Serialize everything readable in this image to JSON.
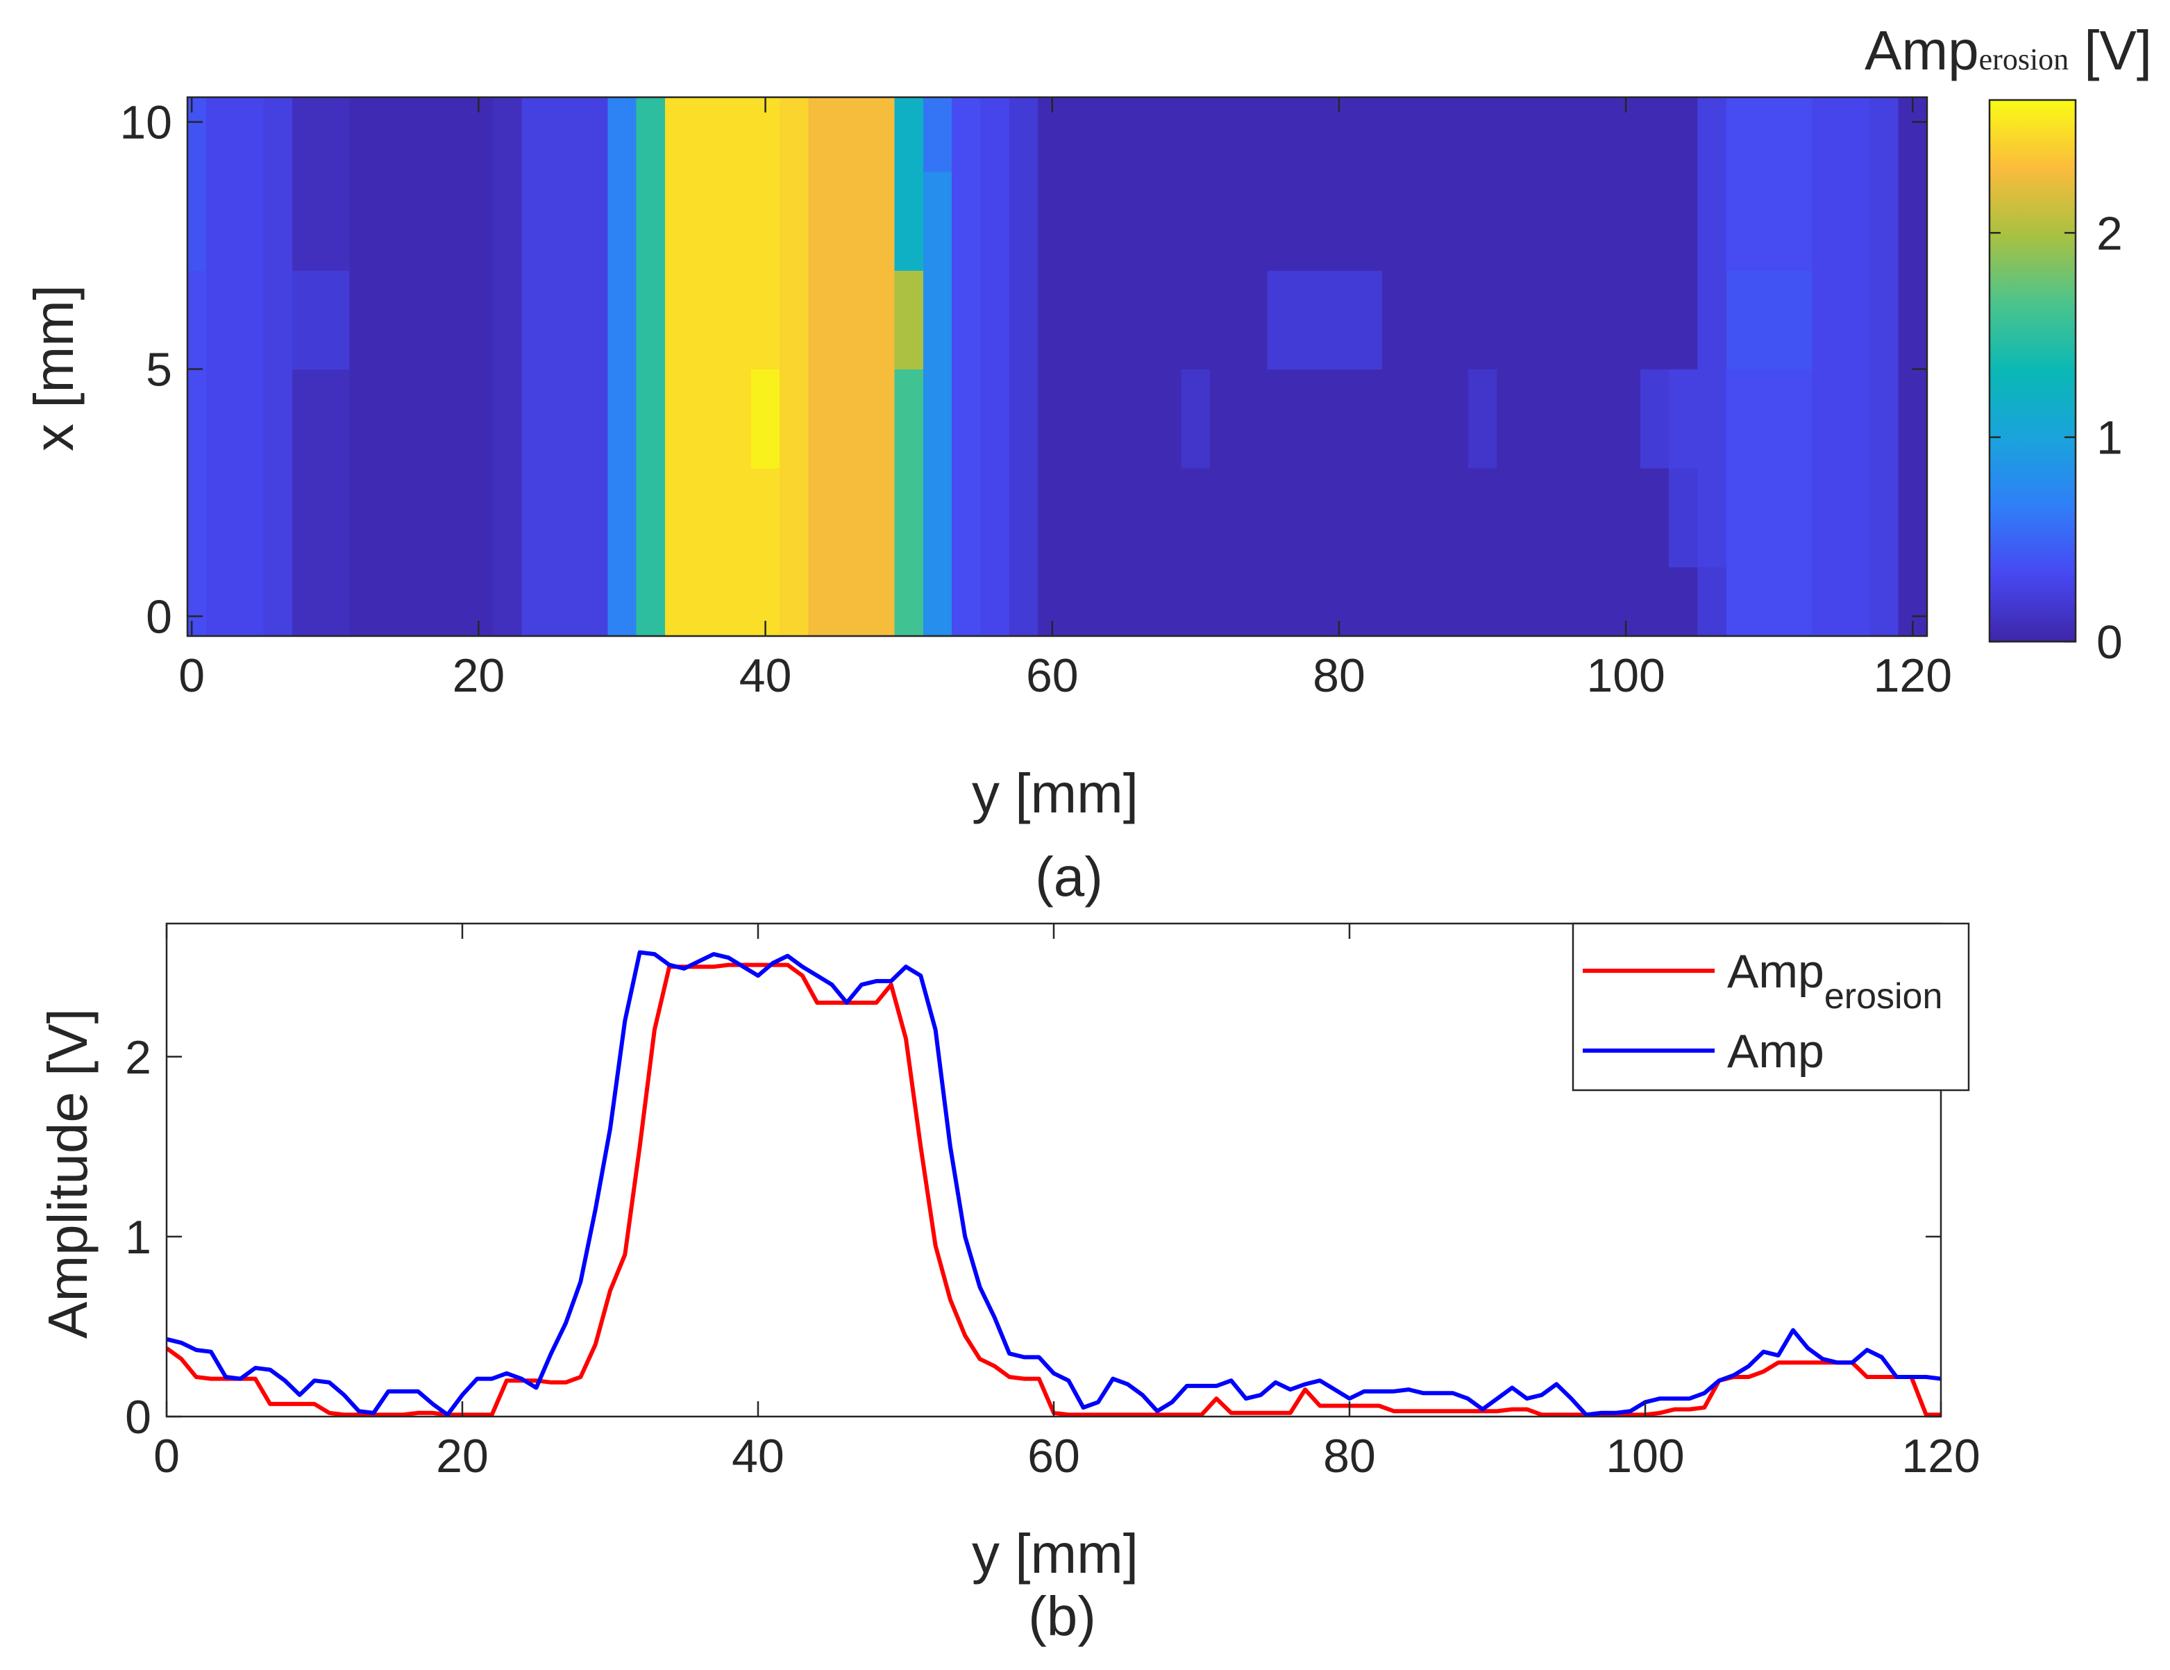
{
  "chart_data": [
    {
      "type": "heatmap",
      "xlabel": "y [mm]",
      "ylabel": "x [mm]",
      "caption": "(a)",
      "x": [
        0,
        2,
        4,
        6,
        8,
        10,
        12,
        14,
        16,
        18,
        20,
        22,
        24,
        26,
        28,
        30,
        32,
        34,
        36,
        38,
        40,
        42,
        44,
        46,
        48,
        50,
        52,
        54,
        56,
        58,
        60,
        62,
        64,
        66,
        68,
        70,
        72,
        74,
        76,
        78,
        80,
        82,
        84,
        86,
        88,
        90,
        92,
        94,
        96,
        98,
        100,
        102,
        104,
        106,
        108,
        110,
        112,
        114,
        116,
        118,
        120
      ],
      "y": [
        0,
        2,
        4,
        6,
        8,
        10
      ],
      "z": [
        [
          0.35,
          0.3,
          0.3,
          0.25,
          0.1,
          0.1,
          0.05,
          0.05,
          0.05,
          0.05,
          0.05,
          0.1,
          0.25,
          0.25,
          0.25,
          0.7,
          1.5,
          2.5,
          2.5,
          2.5,
          2.5,
          2.45,
          2.3,
          2.3,
          2.3,
          1.6,
          0.8,
          0.35,
          0.3,
          0.2,
          0.05,
          0.05,
          0.05,
          0.05,
          0.05,
          0.05,
          0.05,
          0.05,
          0.05,
          0.05,
          0.05,
          0.05,
          0.05,
          0.05,
          0.05,
          0.05,
          0.05,
          0.05,
          0.05,
          0.05,
          0.05,
          0.05,
          0.05,
          0.2,
          0.35,
          0.35,
          0.35,
          0.3,
          0.3,
          0.25,
          0.05
        ],
        [
          0.35,
          0.3,
          0.3,
          0.25,
          0.1,
          0.1,
          0.05,
          0.05,
          0.05,
          0.05,
          0.05,
          0.1,
          0.25,
          0.25,
          0.25,
          0.7,
          1.5,
          2.5,
          2.5,
          2.5,
          2.5,
          2.45,
          2.3,
          2.3,
          2.3,
          1.6,
          0.8,
          0.35,
          0.3,
          0.2,
          0.05,
          0.05,
          0.05,
          0.05,
          0.05,
          0.05,
          0.05,
          0.05,
          0.05,
          0.05,
          0.05,
          0.05,
          0.05,
          0.05,
          0.05,
          0.05,
          0.05,
          0.05,
          0.05,
          0.05,
          0.05,
          0.05,
          0.2,
          0.25,
          0.35,
          0.35,
          0.35,
          0.3,
          0.3,
          0.25,
          0.05
        ],
        [
          0.35,
          0.3,
          0.3,
          0.25,
          0.1,
          0.1,
          0.05,
          0.05,
          0.05,
          0.05,
          0.05,
          0.1,
          0.25,
          0.25,
          0.25,
          0.7,
          1.5,
          2.5,
          2.5,
          2.5,
          2.6,
          2.45,
          2.3,
          2.3,
          2.3,
          1.6,
          0.8,
          0.35,
          0.3,
          0.2,
          0.05,
          0.05,
          0.05,
          0.05,
          0.05,
          0.15,
          0.05,
          0.05,
          0.05,
          0.05,
          0.05,
          0.05,
          0.05,
          0.05,
          0.05,
          0.15,
          0.05,
          0.05,
          0.05,
          0.05,
          0.05,
          0.2,
          0.25,
          0.25,
          0.35,
          0.35,
          0.35,
          0.3,
          0.3,
          0.25,
          0.05
        ],
        [
          0.35,
          0.3,
          0.3,
          0.25,
          0.2,
          0.2,
          0.05,
          0.05,
          0.05,
          0.05,
          0.05,
          0.1,
          0.25,
          0.25,
          0.25,
          0.7,
          1.5,
          2.5,
          2.5,
          2.5,
          2.5,
          2.45,
          2.3,
          2.3,
          2.3,
          2.0,
          0.8,
          0.35,
          0.3,
          0.2,
          0.05,
          0.05,
          0.05,
          0.05,
          0.05,
          0.05,
          0.05,
          0.05,
          0.2,
          0.2,
          0.2,
          0.2,
          0.05,
          0.05,
          0.05,
          0.05,
          0.05,
          0.05,
          0.05,
          0.05,
          0.05,
          0.05,
          0.05,
          0.25,
          0.4,
          0.4,
          0.4,
          0.3,
          0.3,
          0.25,
          0.05
        ],
        [
          0.4,
          0.3,
          0.3,
          0.25,
          0.1,
          0.1,
          0.05,
          0.05,
          0.05,
          0.05,
          0.05,
          0.1,
          0.25,
          0.25,
          0.25,
          0.7,
          1.5,
          2.5,
          2.5,
          2.5,
          2.5,
          2.45,
          2.3,
          2.3,
          2.3,
          1.2,
          0.8,
          0.35,
          0.3,
          0.2,
          0.05,
          0.05,
          0.05,
          0.05,
          0.05,
          0.05,
          0.05,
          0.05,
          0.05,
          0.05,
          0.05,
          0.05,
          0.05,
          0.05,
          0.05,
          0.05,
          0.05,
          0.05,
          0.05,
          0.05,
          0.05,
          0.05,
          0.05,
          0.25,
          0.35,
          0.35,
          0.35,
          0.3,
          0.3,
          0.25,
          0.05
        ],
        [
          0.4,
          0.3,
          0.3,
          0.25,
          0.1,
          0.1,
          0.05,
          0.05,
          0.05,
          0.05,
          0.05,
          0.1,
          0.25,
          0.25,
          0.25,
          0.7,
          1.5,
          2.5,
          2.5,
          2.5,
          2.5,
          2.45,
          2.3,
          2.3,
          2.3,
          1.2,
          0.6,
          0.35,
          0.3,
          0.2,
          0.05,
          0.05,
          0.05,
          0.05,
          0.05,
          0.05,
          0.05,
          0.05,
          0.05,
          0.05,
          0.05,
          0.05,
          0.05,
          0.05,
          0.05,
          0.05,
          0.05,
          0.05,
          0.05,
          0.05,
          0.05,
          0.05,
          0.05,
          0.25,
          0.35,
          0.35,
          0.35,
          0.3,
          0.3,
          0.25,
          0.05
        ]
      ],
      "xlim": [
        -0.3,
        121
      ],
      "ylim": [
        -0.4,
        10.5
      ],
      "xticks": [
        0,
        20,
        40,
        60,
        80,
        100,
        120
      ],
      "yticks": [
        0,
        5,
        10
      ],
      "colorbar": {
        "label": "Amp",
        "label_subscript": "erosion",
        "unit": "[V]",
        "lim": [
          0,
          2.65
        ],
        "ticks": [
          0,
          1,
          2
        ]
      }
    },
    {
      "type": "line",
      "xlabel": "y [mm]",
      "ylabel": "Amplitude [V]",
      "caption": "(b)",
      "x": [
        0,
        1,
        2,
        3,
        4,
        5,
        6,
        7,
        8,
        9,
        10,
        11,
        12,
        13,
        14,
        15,
        16,
        17,
        18,
        19,
        20,
        21,
        22,
        23,
        24,
        25,
        26,
        27,
        28,
        29,
        30,
        31,
        32,
        33,
        34,
        35,
        36,
        37,
        38,
        39,
        40,
        41,
        42,
        43,
        44,
        45,
        46,
        47,
        48,
        49,
        50,
        51,
        52,
        53,
        54,
        55,
        56,
        57,
        58,
        59,
        60,
        61,
        62,
        63,
        64,
        65,
        66,
        67,
        68,
        69,
        70,
        71,
        72,
        73,
        74,
        75,
        76,
        77,
        78,
        79,
        80,
        81,
        82,
        83,
        84,
        85,
        86,
        87,
        88,
        89,
        90,
        91,
        92,
        93,
        94,
        95,
        96,
        97,
        98,
        99,
        100,
        101,
        102,
        103,
        104,
        105,
        106,
        107,
        108,
        109,
        110,
        111,
        112,
        113,
        114,
        115,
        116,
        117,
        118,
        119,
        120
      ],
      "series": [
        {
          "name": "Amp",
          "name_subscript": "erosion",
          "color": "#ff0000",
          "values": [
            0.38,
            0.32,
            0.22,
            0.21,
            0.21,
            0.21,
            0.21,
            0.07,
            0.07,
            0.07,
            0.07,
            0.02,
            0.01,
            0.01,
            0.01,
            0.01,
            0.01,
            0.02,
            0.02,
            0.01,
            0.01,
            0.01,
            0.01,
            0.2,
            0.2,
            0.2,
            0.19,
            0.19,
            0.22,
            0.4,
            0.7,
            0.9,
            1.5,
            2.15,
            2.5,
            2.5,
            2.5,
            2.5,
            2.51,
            2.51,
            2.51,
            2.51,
            2.51,
            2.45,
            2.3,
            2.3,
            2.3,
            2.3,
            2.3,
            2.4,
            2.1,
            1.5,
            0.95,
            0.65,
            0.45,
            0.32,
            0.28,
            0.22,
            0.21,
            0.21,
            0.02,
            0.01,
            0.01,
            0.01,
            0.01,
            0.01,
            0.01,
            0.01,
            0.01,
            0.01,
            0.01,
            0.1,
            0.02,
            0.02,
            0.02,
            0.02,
            0.02,
            0.15,
            0.06,
            0.06,
            0.06,
            0.06,
            0.06,
            0.03,
            0.03,
            0.03,
            0.03,
            0.03,
            0.03,
            0.03,
            0.03,
            0.04,
            0.04,
            0.01,
            0.01,
            0.01,
            0.01,
            0.01,
            0.01,
            0.01,
            0.01,
            0.02,
            0.04,
            0.04,
            0.05,
            0.2,
            0.22,
            0.22,
            0.25,
            0.3,
            0.3,
            0.3,
            0.3,
            0.3,
            0.3,
            0.22,
            0.22,
            0.22,
            0.22,
            0.01,
            0.01
          ]
        },
        {
          "name": "Amp",
          "color": "#0000ff",
          "values": [
            0.43,
            0.41,
            0.37,
            0.36,
            0.22,
            0.21,
            0.27,
            0.26,
            0.2,
            0.12,
            0.2,
            0.19,
            0.12,
            0.03,
            0.02,
            0.14,
            0.14,
            0.14,
            0.07,
            0.01,
            0.12,
            0.21,
            0.21,
            0.24,
            0.21,
            0.16,
            0.35,
            0.52,
            0.75,
            1.15,
            1.6,
            2.2,
            2.58,
            2.57,
            2.51,
            2.49,
            2.53,
            2.57,
            2.55,
            2.5,
            2.45,
            2.52,
            2.56,
            2.5,
            2.45,
            2.4,
            2.3,
            2.4,
            2.42,
            2.42,
            2.5,
            2.45,
            2.15,
            1.5,
            1.0,
            0.72,
            0.55,
            0.35,
            0.33,
            0.33,
            0.24,
            0.2,
            0.05,
            0.08,
            0.21,
            0.18,
            0.12,
            0.03,
            0.08,
            0.17,
            0.17,
            0.17,
            0.2,
            0.1,
            0.12,
            0.19,
            0.15,
            0.18,
            0.2,
            0.15,
            0.1,
            0.14,
            0.14,
            0.14,
            0.15,
            0.13,
            0.13,
            0.13,
            0.1,
            0.04,
            0.1,
            0.16,
            0.1,
            0.12,
            0.18,
            0.1,
            0.01,
            0.02,
            0.02,
            0.03,
            0.08,
            0.1,
            0.1,
            0.1,
            0.13,
            0.2,
            0.23,
            0.28,
            0.36,
            0.34,
            0.48,
            0.38,
            0.32,
            0.3,
            0.3,
            0.37,
            0.33,
            0.22,
            0.22,
            0.22,
            0.21
          ]
        }
      ],
      "xlim": [
        0,
        120
      ],
      "ylim": [
        0,
        2.74
      ],
      "xticks": [
        0,
        20,
        40,
        60,
        80,
        100,
        120
      ],
      "yticks": [
        0,
        1,
        2
      ],
      "legend": "upper right"
    }
  ]
}
